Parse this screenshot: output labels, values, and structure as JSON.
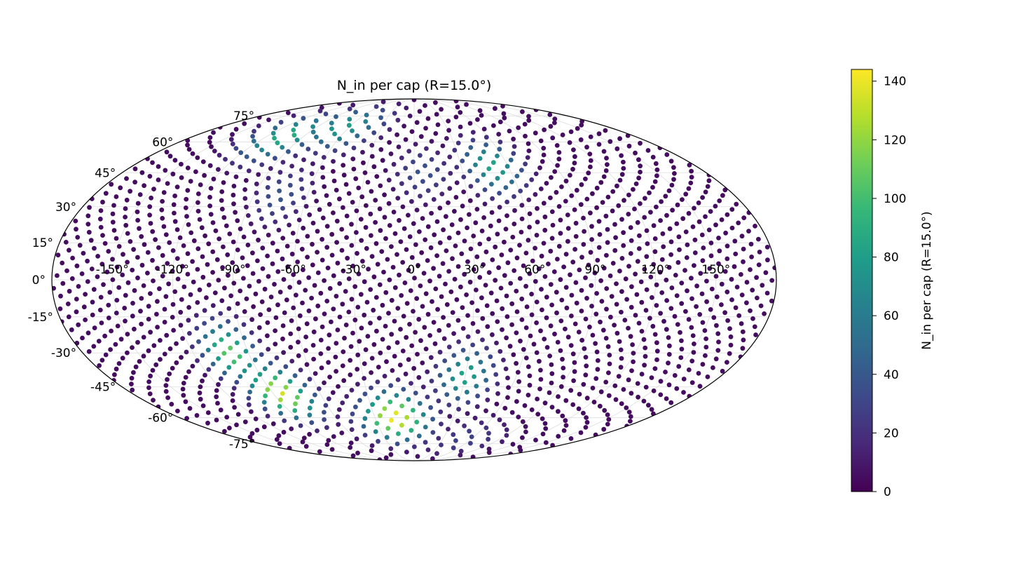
{
  "chart_data": {
    "type": "scatter",
    "projection": "mollweide",
    "title": "N_in per cap (R=15.0°)",
    "colorbar": {
      "label": "N_in per cap (R=15.0°)",
      "range": [
        0,
        144
      ],
      "ticks": [
        {
          "value": 0,
          "label": "0"
        },
        {
          "value": 20,
          "label": "20"
        },
        {
          "value": 40,
          "label": "40"
        },
        {
          "value": 60,
          "label": "60"
        },
        {
          "value": 80,
          "label": "80"
        },
        {
          "value": 100,
          "label": "100"
        },
        {
          "value": 120,
          "label": "120"
        },
        {
          "value": 140,
          "label": "140"
        }
      ],
      "colormap": "viridis",
      "placement": "right"
    },
    "lon_ticks": [
      {
        "value": -150,
        "label": "-150°"
      },
      {
        "value": -120,
        "label": "-120°"
      },
      {
        "value": -90,
        "label": "-90°"
      },
      {
        "value": -60,
        "label": "-60°"
      },
      {
        "value": -30,
        "label": "-30°"
      },
      {
        "value": 0,
        "label": "0°"
      },
      {
        "value": 30,
        "label": "30°"
      },
      {
        "value": 60,
        "label": "60°"
      },
      {
        "value": 90,
        "label": "90°"
      },
      {
        "value": 120,
        "label": "120°"
      },
      {
        "value": 150,
        "label": "150°"
      }
    ],
    "lat_ticks": [
      {
        "value": 75,
        "label": "75°"
      },
      {
        "value": 60,
        "label": "60°"
      },
      {
        "value": 45,
        "label": "45°"
      },
      {
        "value": 30,
        "label": "30°"
      },
      {
        "value": 15,
        "label": "15°"
      },
      {
        "value": 0,
        "label": "0°"
      },
      {
        "value": -15,
        "label": "-15°"
      },
      {
        "value": -30,
        "label": "-30°"
      },
      {
        "value": -45,
        "label": "-45°"
      },
      {
        "value": -60,
        "label": "-60°"
      },
      {
        "value": -75,
        "label": "-75°"
      }
    ],
    "grid": true,
    "point_count": 2000,
    "background_value": 5,
    "clusters": [
      {
        "lon": -15,
        "lat": -60,
        "peak": 144
      },
      {
        "lon": -85,
        "lat": -48,
        "peak": 135
      },
      {
        "lon": -100,
        "lat": -30,
        "peak": 110
      },
      {
        "lon": -105,
        "lat": 63,
        "peak": 92
      },
      {
        "lon": -65,
        "lat": 68,
        "peak": 80
      },
      {
        "lon": 50,
        "lat": 48,
        "peak": 85
      },
      {
        "lon": 30,
        "lat": -40,
        "peak": 85
      },
      {
        "lon": 5,
        "lat": 45,
        "peak": 38
      },
      {
        "lon": -75,
        "lat": 35,
        "peak": 40
      },
      {
        "lon": 55,
        "lat": -72,
        "peak": 30
      }
    ]
  }
}
